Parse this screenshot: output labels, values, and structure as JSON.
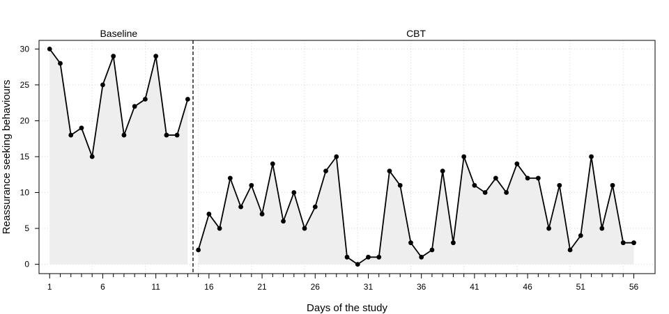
{
  "chart_data": {
    "type": "line",
    "xlabel": "Days of the study",
    "ylabel": "Reassurance seeking behaviours",
    "xlim": [
      0,
      58
    ],
    "ylim": [
      -1.3,
      31.2
    ],
    "grid": true,
    "x_ticks": [
      1,
      2,
      3,
      4,
      5,
      6,
      7,
      8,
      9,
      10,
      11,
      12,
      13,
      14,
      15,
      16,
      17,
      18,
      19,
      20,
      21,
      22,
      23,
      24,
      25,
      26,
      27,
      28,
      29,
      30,
      31,
      32,
      33,
      34,
      35,
      36,
      37,
      38,
      39,
      40,
      41,
      42,
      43,
      44,
      45,
      46,
      47,
      48,
      49,
      50,
      51,
      52,
      53,
      54,
      55,
      56
    ],
    "x_tick_labels": [
      "1",
      "6",
      "11",
      "16",
      "21",
      "26",
      "31",
      "36",
      "41",
      "46",
      "51",
      "56"
    ],
    "y_ticks": [
      0,
      5,
      10,
      15,
      20,
      25,
      30
    ],
    "y_tick_labels": [
      "0",
      "5",
      "10",
      "15",
      "20",
      "25",
      "30"
    ],
    "phase_change_after_day": 14,
    "phases": [
      {
        "label": "Baseline",
        "days": [
          1,
          14
        ]
      },
      {
        "label": "CBT",
        "days": [
          15,
          56
        ]
      }
    ],
    "series": [
      {
        "x": [
          1,
          2,
          3,
          4,
          5,
          6,
          7,
          8,
          9,
          10,
          11,
          12,
          13,
          14
        ],
        "values": [
          30,
          28,
          18,
          19,
          15,
          25,
          29,
          18,
          22,
          23,
          29,
          18,
          18,
          23
        ]
      },
      {
        "x": [
          15,
          16,
          17,
          18,
          19,
          20,
          21,
          22,
          23,
          24,
          25,
          26,
          27,
          28,
          29,
          30,
          31,
          32,
          33,
          34,
          35,
          36,
          37,
          38,
          39,
          40,
          41,
          42,
          43,
          44,
          45,
          46,
          47,
          48,
          49,
          50,
          51,
          52,
          53,
          54,
          55,
          56
        ],
        "values": [
          2,
          7,
          5,
          12,
          8,
          11,
          7,
          14,
          6,
          10,
          5,
          8,
          13,
          15,
          1,
          0,
          1,
          1,
          13,
          11,
          3,
          1,
          2,
          13,
          3,
          15,
          11,
          10,
          12,
          10,
          14,
          12,
          12,
          5,
          11,
          2,
          4,
          15,
          5,
          11,
          3,
          3
        ]
      }
    ],
    "colors": {
      "line": "#000000",
      "fill": "#eeeeee",
      "grid": "#c9d9d0",
      "divider": "#000000"
    }
  }
}
